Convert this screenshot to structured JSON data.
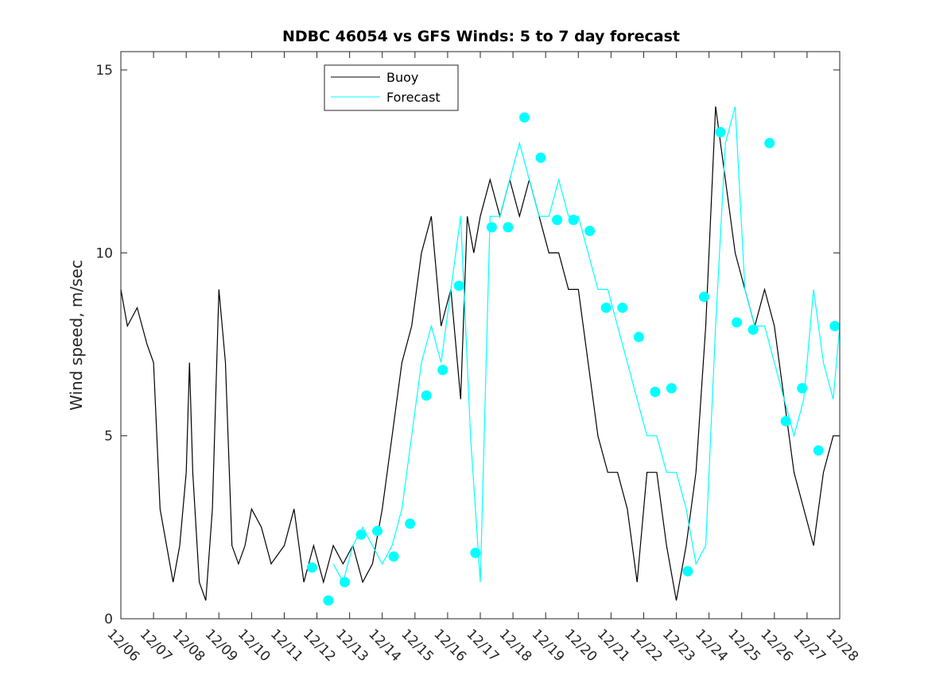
{
  "chart_data": {
    "type": "line",
    "title": "NDBC 46054 vs GFS Winds: 5 to 7 day forecast",
    "xlabel": "",
    "ylabel": "Wind speed, m/sec",
    "xlim": [
      0,
      22
    ],
    "ylim": [
      0,
      15.5
    ],
    "x_ticks": [
      0,
      1,
      2,
      3,
      4,
      5,
      6,
      7,
      8,
      9,
      10,
      11,
      12,
      13,
      14,
      15,
      16,
      17,
      18,
      19,
      20,
      21,
      22
    ],
    "x_tick_labels": [
      "12/06",
      "12/07",
      "12/08",
      "12/09",
      "12/10",
      "12/11",
      "12/12",
      "12/13",
      "12/14",
      "12/15",
      "12/16",
      "12/17",
      "12/18",
      "12/19",
      "12/20",
      "12/21",
      "12/22",
      "12/23",
      "12/24",
      "12/25",
      "12/26",
      "12/27",
      "12/28"
    ],
    "y_ticks": [
      0,
      5,
      10,
      15
    ],
    "y_tick_labels": [
      "0",
      "5",
      "10",
      "15"
    ],
    "legend": {
      "position": "top-center",
      "entries": [
        "Buoy",
        "Forecast"
      ]
    },
    "colors": {
      "buoy": "#000000",
      "forecast": "#00ffff",
      "marker": "#00ffff"
    },
    "series": [
      {
        "name": "Buoy",
        "x": [
          0,
          0.2,
          0.5,
          0.8,
          1.0,
          1.2,
          1.4,
          1.6,
          1.8,
          2.0,
          2.1,
          2.2,
          2.4,
          2.6,
          2.8,
          3.0,
          3.2,
          3.4,
          3.6,
          3.8,
          4.0,
          4.3,
          4.6,
          5.0,
          5.3,
          5.6,
          5.9,
          6.2,
          6.5,
          6.8,
          7.1,
          7.4,
          7.7,
          8.0,
          8.3,
          8.6,
          8.9,
          9.2,
          9.5,
          9.8,
          10.1,
          10.4,
          10.6,
          10.8,
          11.0,
          11.3,
          11.6,
          11.9,
          12.2,
          12.5,
          12.8,
          13.1,
          13.4,
          13.7,
          14.0,
          14.3,
          14.6,
          14.9,
          15.2,
          15.5,
          15.8,
          16.1,
          16.4,
          16.7,
          17.0,
          17.3,
          17.6,
          17.9,
          18.2,
          18.5,
          18.8,
          19.1,
          19.4,
          19.7,
          20.0,
          20.3,
          20.6,
          20.9,
          21.2,
          21.5,
          21.8,
          22.0
        ],
        "y": [
          9,
          8,
          8.5,
          7.5,
          7,
          3,
          2,
          1,
          2,
          4,
          7,
          4,
          1,
          0.5,
          3,
          9,
          7,
          2,
          1.5,
          2,
          3,
          2.5,
          1.5,
          2,
          3,
          1,
          2,
          1,
          2,
          1.5,
          2,
          1,
          1.5,
          3,
          5,
          7,
          8,
          10,
          11,
          8,
          9,
          6,
          11,
          10,
          11,
          12,
          11,
          12,
          11,
          12,
          11,
          10,
          10,
          9,
          9,
          7,
          5,
          4,
          4,
          3,
          1,
          4,
          4,
          2,
          0.5,
          2,
          4,
          8,
          14,
          12,
          10,
          9,
          8,
          9,
          8,
          6,
          4,
          3,
          2,
          4,
          5,
          5
        ]
      },
      {
        "name": "Forecast",
        "x": [
          6.5,
          6.8,
          7.1,
          7.4,
          7.7,
          8.0,
          8.3,
          8.6,
          8.9,
          9.2,
          9.5,
          9.8,
          10.1,
          10.4,
          10.7,
          11.0,
          11.3,
          11.6,
          11.9,
          12.2,
          12.5,
          12.8,
          13.1,
          13.4,
          13.7,
          14.0,
          14.3,
          14.6,
          14.9,
          15.2,
          15.5,
          15.8,
          16.1,
          16.4,
          16.7,
          17.0,
          17.3,
          17.6,
          17.9,
          18.2,
          18.5,
          18.8,
          19.1,
          19.4,
          19.7,
          20.0,
          20.3,
          20.6,
          20.9,
          21.2,
          21.5,
          21.8,
          22.0
        ],
        "y": [
          1.5,
          1,
          2,
          2.5,
          2,
          1.5,
          2,
          3,
          5,
          7,
          8,
          7,
          9,
          11,
          5,
          1,
          11,
          11,
          12,
          13,
          12,
          11,
          11,
          12,
          11,
          11,
          10,
          9,
          9,
          8,
          7,
          6,
          5,
          5,
          4,
          4,
          3,
          1.5,
          2,
          8,
          13,
          14,
          9,
          8,
          8,
          7,
          6,
          5,
          6,
          9,
          7,
          6,
          8
        ]
      }
    ],
    "markers": {
      "name": "Forecast points",
      "x": [
        5.85,
        6.35,
        6.85,
        7.35,
        7.85,
        8.35,
        8.85,
        9.35,
        9.85,
        10.35,
        10.85,
        11.35,
        11.85,
        12.35,
        12.85,
        13.35,
        13.85,
        14.35,
        14.85,
        15.35,
        15.85,
        16.35,
        16.85,
        17.35,
        17.85,
        18.35,
        18.85,
        19.35,
        19.85,
        20.35,
        20.85,
        21.35,
        21.85
      ],
      "y": [
        1.4,
        0.5,
        1.0,
        2.3,
        2.4,
        1.7,
        2.6,
        6.1,
        6.8,
        9.1,
        1.8,
        10.7,
        10.7,
        13.7,
        12.6,
        10.9,
        10.9,
        10.6,
        8.5,
        8.5,
        7.7,
        6.2,
        6.3,
        1.3,
        8.8,
        13.3,
        8.1,
        7.9,
        13.0,
        5.4,
        6.3,
        4.6,
        8.0
      ]
    }
  }
}
